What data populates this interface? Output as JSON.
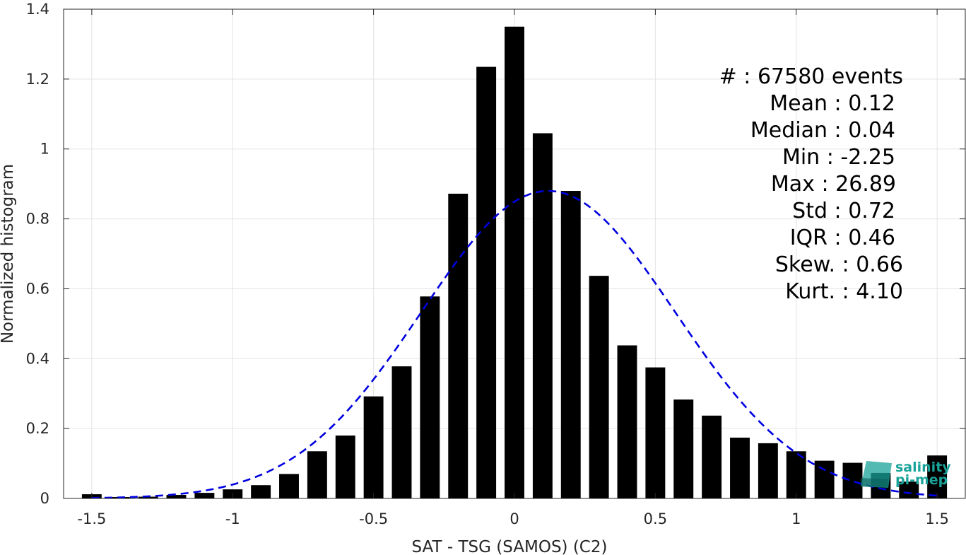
{
  "chart_data": {
    "type": "bar",
    "xlabel": "SAT - TSG (SAMOS) (C2)",
    "ylabel": "Normalized histogram",
    "xlim": [
      -1.6,
      1.6
    ],
    "ylim": [
      0,
      1.4
    ],
    "xticks": [
      -1.5,
      -1,
      -0.5,
      0,
      0.5,
      1,
      1.5
    ],
    "xtick_labels": [
      "-1.5",
      "-1",
      "-0.5",
      "0",
      "0.5",
      "1",
      "1.5"
    ],
    "yticks": [
      0,
      0.2,
      0.4,
      0.6,
      0.8,
      1,
      1.2,
      1.4
    ],
    "ytick_labels": [
      "0",
      "0.2",
      "0.4",
      "0.6",
      "0.8",
      "1",
      "1.2",
      "1.4"
    ],
    "grid": true,
    "bar_color": "#000000",
    "bar_width": 0.07,
    "x": [
      -1.5,
      -1.4,
      -1.3,
      -1.2,
      -1.1,
      -1.0,
      -0.9,
      -0.8,
      -0.7,
      -0.6,
      -0.5,
      -0.4,
      -0.3,
      -0.2,
      -0.1,
      0.0,
      0.1,
      0.2,
      0.3,
      0.4,
      0.5,
      0.6,
      0.7,
      0.8,
      0.9,
      1.0,
      1.1,
      1.2,
      1.3,
      1.4,
      1.5
    ],
    "values": [
      0.012,
      0.004,
      0.005,
      0.01,
      0.016,
      0.026,
      0.038,
      0.07,
      0.135,
      0.18,
      0.292,
      0.378,
      0.578,
      0.872,
      1.235,
      1.35,
      1.045,
      0.88,
      0.637,
      0.438,
      0.375,
      0.283,
      0.237,
      0.174,
      0.158,
      0.135,
      0.108,
      0.102,
      0.073,
      0.048,
      0.123
    ],
    "fit_curve": {
      "style": "dashed",
      "color": "#0000e0",
      "distribution": "gaussian",
      "mean": 0.12,
      "std": 0.45,
      "peak": 0.88,
      "x_range": [
        -1.5,
        1.5
      ]
    },
    "annotations": [
      "#  : 67580 events",
      "Mean : 0.12",
      "Median : 0.04",
      "Min : -2.25",
      "Max : 26.89",
      "Std : 0.72",
      "IQR : 0.46",
      "Skew. : 0.66",
      "Kurt. : 4.10"
    ]
  },
  "logo": {
    "line1": "salinity",
    "line2": "pi-mep",
    "color": "#1aa39a"
  }
}
